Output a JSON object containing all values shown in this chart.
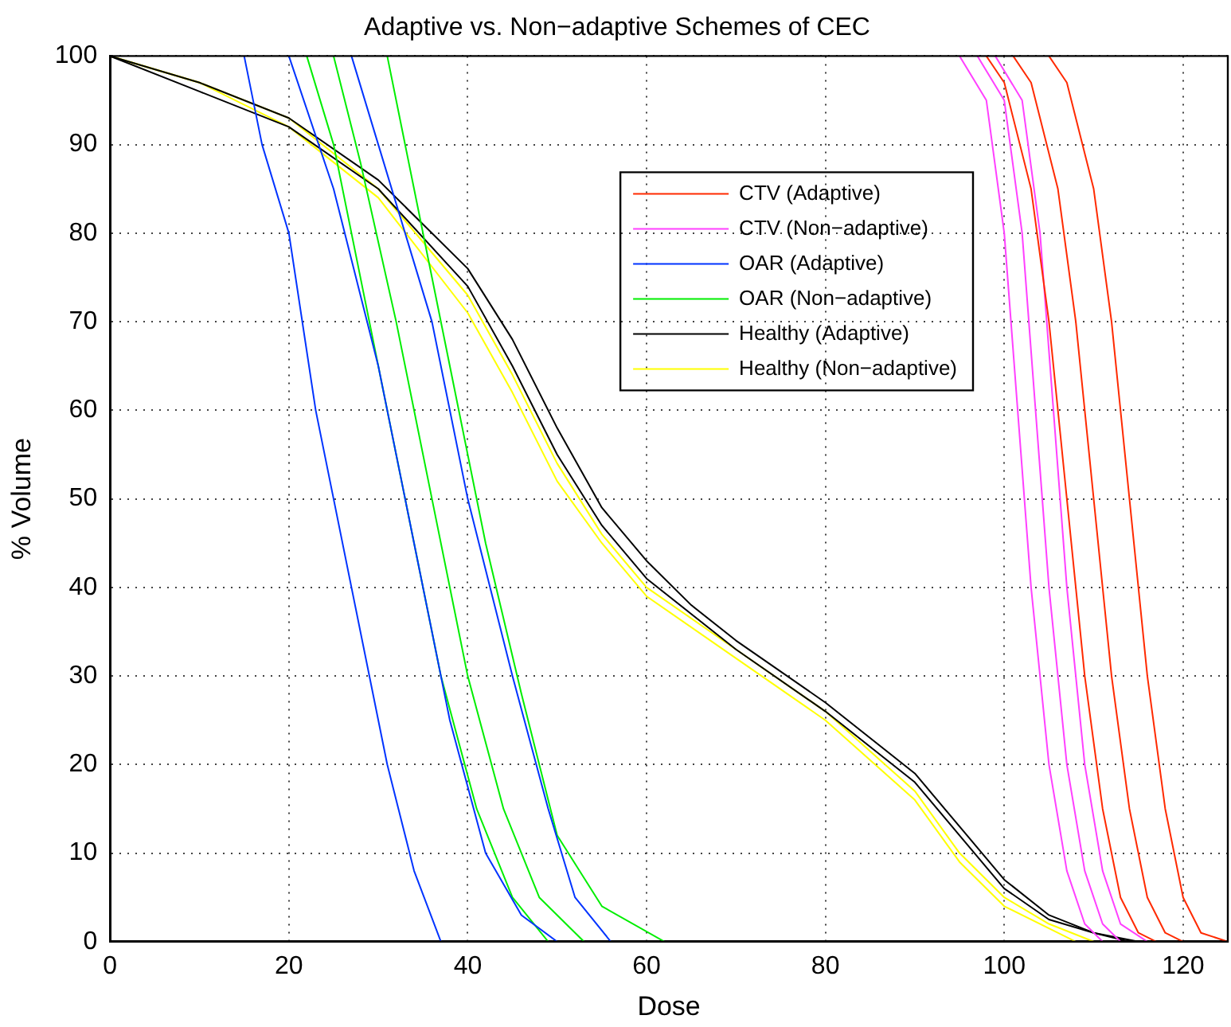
{
  "chart_data": {
    "type": "line",
    "title": "Adaptive vs. Non−adaptive Schemes of CEC",
    "xlabel": "Dose",
    "ylabel": "% Volume",
    "xlim": [
      0,
      125
    ],
    "ylim": [
      0,
      100
    ],
    "xticks": [
      0,
      20,
      40,
      60,
      80,
      100,
      120
    ],
    "yticks": [
      0,
      10,
      20,
      30,
      40,
      50,
      60,
      70,
      80,
      90,
      100
    ],
    "grid": true,
    "legend": "top right",
    "marker": "none",
    "line_style": "solid",
    "series": [
      {
        "name": "CTV (Adaptive)",
        "color": "#ff2a00",
        "x": [
          101,
          103,
          106,
          108,
          110,
          112,
          114,
          116,
          118,
          120
        ],
        "values": [
          100,
          97,
          85,
          70,
          50,
          30,
          15,
          5,
          1,
          0
        ]
      },
      {
        "color": "#ff2a00",
        "x": [
          98,
          100,
          103,
          105,
          107,
          109,
          111,
          113,
          115,
          117
        ],
        "values": [
          100,
          97,
          85,
          70,
          50,
          30,
          15,
          5,
          1,
          0
        ]
      },
      {
        "color": "#ff2a00",
        "x": [
          105,
          107,
          110,
          112,
          114,
          116,
          118,
          120,
          122,
          125
        ],
        "values": [
          100,
          97,
          85,
          70,
          50,
          30,
          15,
          5,
          1,
          0
        ]
      },
      {
        "name": "CTV (Non−adaptive)",
        "color": "#ff40ff",
        "x": [
          97,
          100,
          102,
          103.5,
          105,
          107,
          109,
          111,
          113
        ],
        "values": [
          100,
          95,
          80,
          60,
          40,
          20,
          8,
          2,
          0
        ]
      },
      {
        "color": "#ff40ff",
        "x": [
          95,
          98,
          100,
          101.5,
          103,
          105,
          107,
          109,
          111
        ],
        "values": [
          100,
          95,
          80,
          60,
          40,
          20,
          8,
          2,
          0
        ]
      },
      {
        "color": "#ff40ff",
        "x": [
          99,
          102,
          104,
          105.5,
          107,
          109,
          111,
          113,
          116
        ],
        "values": [
          100,
          95,
          80,
          60,
          40,
          20,
          8,
          2,
          0
        ]
      },
      {
        "name": "OAR (Adaptive)",
        "color": "#0033ff",
        "x": [
          15,
          17,
          20,
          23,
          27,
          31,
          34,
          37
        ],
        "values": [
          100,
          90,
          80,
          60,
          40,
          20,
          8,
          0
        ]
      },
      {
        "color": "#0033ff",
        "x": [
          20,
          25,
          30,
          34,
          38,
          42,
          46,
          50
        ],
        "values": [
          100,
          85,
          65,
          45,
          25,
          10,
          3,
          0
        ]
      },
      {
        "color": "#0033ff",
        "x": [
          27,
          30,
          36,
          40,
          45,
          49,
          52,
          56
        ],
        "values": [
          100,
          90,
          70,
          50,
          30,
          15,
          5,
          0
        ]
      },
      {
        "name": "OAR (Non−adaptive)",
        "color": "#00ee00",
        "x": [
          22,
          25,
          29,
          33,
          37,
          41,
          45,
          49
        ],
        "values": [
          100,
          90,
          70,
          50,
          30,
          15,
          5,
          0
        ]
      },
      {
        "color": "#00ee00",
        "x": [
          25,
          28,
          32,
          36,
          40,
          44,
          48,
          53
        ],
        "values": [
          100,
          88,
          70,
          50,
          30,
          15,
          5,
          0
        ]
      },
      {
        "color": "#00ee00",
        "x": [
          31,
          34,
          38,
          42,
          46,
          50,
          55,
          62
        ],
        "values": [
          100,
          85,
          65,
          45,
          28,
          12,
          4,
          0
        ]
      },
      {
        "name": "Healthy (Adaptive)",
        "color": "#000000",
        "x": [
          0,
          10,
          20,
          30,
          40,
          45,
          50,
          55,
          60,
          65,
          70,
          80,
          90,
          95,
          100,
          105,
          110,
          115
        ],
        "values": [
          100,
          97,
          93,
          86,
          76,
          68,
          58,
          49,
          43,
          38,
          34,
          27,
          19,
          13,
          7,
          3,
          1,
          0
        ]
      },
      {
        "color": "#000000",
        "x": [
          0,
          10,
          20,
          30,
          40,
          45,
          50,
          55,
          60,
          65,
          70,
          80,
          90,
          95,
          100,
          105,
          110,
          114
        ],
        "values": [
          100,
          96,
          92,
          85,
          74,
          65,
          55,
          47,
          41,
          37,
          33,
          26,
          18,
          12,
          6,
          2.5,
          1,
          0
        ]
      },
      {
        "name": "Healthy (Non−adaptive)",
        "color": "#ffff00",
        "x": [
          0,
          10,
          20,
          30,
          40,
          45,
          50,
          55,
          60,
          70,
          80,
          90,
          95,
          100,
          105,
          110
        ],
        "values": [
          100,
          97,
          93,
          85,
          73,
          64,
          54,
          46,
          40,
          33,
          26,
          17,
          10,
          5,
          2,
          0
        ]
      },
      {
        "color": "#ffff00",
        "x": [
          0,
          10,
          20,
          30,
          40,
          45,
          50,
          55,
          60,
          70,
          80,
          90,
          95,
          100,
          105,
          108
        ],
        "values": [
          100,
          97,
          92,
          84,
          71,
          62,
          52,
          45,
          39,
          32,
          25,
          16,
          9,
          4,
          1.5,
          0
        ]
      }
    ]
  }
}
